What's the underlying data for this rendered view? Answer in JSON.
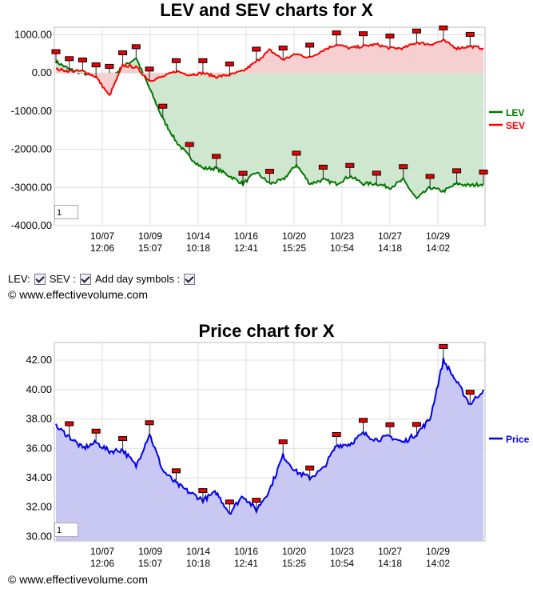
{
  "copyright": "© www.effectivevolume.com",
  "controls": {
    "lev_label": "LEV:",
    "sev_label": "SEV :",
    "day_symbols_label": "Add day symbols :"
  },
  "colors": {
    "lev": "#007700",
    "sev": "#ff0000",
    "price": "#0000ee",
    "lev_fill": "#cfe6cf",
    "sev_fill": "#f6d0d0",
    "price_fill": "#c8c8f2"
  },
  "chart_data": [
    {
      "type": "line",
      "title": "LEV and SEV charts for X",
      "zoom_value": "1",
      "x_ticks": [
        {
          "date": "10/07",
          "time": "12:06"
        },
        {
          "date": "10/09",
          "time": "15:07"
        },
        {
          "date": "10/14",
          "time": "10:18"
        },
        {
          "date": "10/16",
          "time": "12:41"
        },
        {
          "date": "10/20",
          "time": "15:25"
        },
        {
          "date": "10/23",
          "time": "10:54"
        },
        {
          "date": "10/27",
          "time": "14:18"
        },
        {
          "date": "10/29",
          "time": "14:02"
        }
      ],
      "y_ticks": [
        "1000.00",
        "0.00",
        "-1000.00",
        "-2000.00",
        "-3000.00",
        "-4000.00"
      ],
      "ylim": [
        -4000,
        1200
      ],
      "legend": "right",
      "series": [
        {
          "name": "LEV",
          "values": [
            300,
            100,
            0,
            -100,
            -150,
            150,
            400,
            -400,
            -1200,
            -1800,
            -2200,
            -2500,
            -2500,
            -2700,
            -2900,
            -2600,
            -2900,
            -2800,
            -2400,
            -2900,
            -2800,
            -2900,
            -2700,
            -2900,
            -2900,
            -3000,
            -2800,
            -3300,
            -3000,
            -3100,
            -2900,
            -2950,
            -2900
          ]
        },
        {
          "name": "SEV",
          "values": [
            100,
            50,
            50,
            -100,
            -600,
            200,
            150,
            -200,
            -100,
            50,
            -50,
            0,
            -100,
            -50,
            50,
            300,
            600,
            350,
            500,
            400,
            600,
            750,
            650,
            700,
            750,
            650,
            650,
            800,
            750,
            850,
            650,
            700,
            650
          ]
        }
      ]
    },
    {
      "type": "area",
      "title": "Price chart for X",
      "zoom_value": "1",
      "x_ticks": [
        {
          "date": "10/07",
          "time": "12:06"
        },
        {
          "date": "10/09",
          "time": "15:07"
        },
        {
          "date": "10/14",
          "time": "10:18"
        },
        {
          "date": "10/16",
          "time": "12:41"
        },
        {
          "date": "10/20",
          "time": "15:25"
        },
        {
          "date": "10/23",
          "time": "10:54"
        },
        {
          "date": "10/27",
          "time": "14:18"
        },
        {
          "date": "10/29",
          "time": "14:02"
        }
      ],
      "y_ticks": [
        "42.00",
        "40.00",
        "38.00",
        "36.00",
        "34.00",
        "32.00",
        "30.00"
      ],
      "ylim": [
        29.7,
        43.2
      ],
      "legend": "right",
      "series": [
        {
          "name": "Price",
          "values": [
            37.5,
            36.8,
            36.0,
            36.4,
            35.8,
            35.9,
            34.8,
            37.0,
            34.5,
            33.6,
            33.0,
            32.5,
            33.0,
            31.6,
            32.8,
            31.8,
            33.2,
            35.5,
            34.4,
            34.0,
            34.6,
            36.2,
            36.3,
            37.0,
            36.6,
            36.8,
            36.4,
            37.0,
            38.0,
            42.0,
            40.5,
            39.0,
            40.0
          ]
        }
      ]
    }
  ]
}
